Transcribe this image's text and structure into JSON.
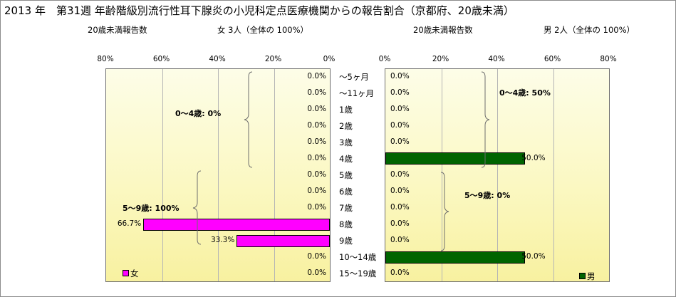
{
  "title": "2013 年　第31週 年齢階級別流行性耳下腺炎の小児科定点医療機関からの報告割合（京都府、20歳未満）",
  "female_panel": {
    "count_label": "20歳未満報告数",
    "summary": "女 3人（全体の 100%）",
    "legend": "女",
    "color": "#ff00ff"
  },
  "male_panel": {
    "count_label": "20歳未満報告数",
    "summary": "男 2人（全体の 100%）",
    "legend": "男",
    "color": "#006400"
  },
  "chart_data": [
    {
      "type": "bar",
      "orientation": "horizontal",
      "direction": "right-to-left",
      "series": [
        {
          "name": "女",
          "values": [
            0,
            0,
            0,
            0,
            0,
            0,
            0,
            0,
            0,
            66.7,
            33.3,
            0,
            0
          ]
        }
      ],
      "categories": [
        "～5ヶ月",
        "～11ヶ月",
        "1歳",
        "2歳",
        "3歳",
        "4歳",
        "5歳",
        "6歳",
        "7歳",
        "8歳",
        "9歳",
        "10～14歳",
        "15～19歳"
      ],
      "value_labels": [
        "0.0%",
        "0.0%",
        "0.0%",
        "0.0%",
        "0.0%",
        "0.0%",
        "0.0%",
        "0.0%",
        "0.0%",
        "66.7%",
        "33.3%",
        "0.0%",
        "0.0%"
      ],
      "xlim": [
        0,
        80
      ],
      "tick_labels": [
        "80%",
        "60%",
        "40%",
        "20%",
        "0%"
      ],
      "annotations": [
        "0～4歳:  0%",
        "5～9歳: 100%"
      ],
      "legend_position": "bottom-left",
      "grid": true
    },
    {
      "type": "bar",
      "orientation": "horizontal",
      "direction": "left-to-right",
      "series": [
        {
          "name": "男",
          "values": [
            0,
            0,
            0,
            0,
            0,
            50,
            0,
            0,
            0,
            0,
            0,
            50,
            0
          ]
        }
      ],
      "categories": [
        "～5ヶ月",
        "～11ヶ月",
        "1歳",
        "2歳",
        "3歳",
        "4歳",
        "5歳",
        "6歳",
        "7歳",
        "8歳",
        "9歳",
        "10～14歳",
        "15～19歳"
      ],
      "value_labels": [
        "0.0%",
        "0.0%",
        "0.0%",
        "0.0%",
        "0.0%",
        "50.0%",
        "0.0%",
        "0.0%",
        "0.0%",
        "0.0%",
        "0.0%",
        "50.0%",
        "0.0%"
      ],
      "xlim": [
        0,
        80
      ],
      "tick_labels": [
        "0%",
        "20%",
        "40%",
        "60%",
        "80%"
      ],
      "annotations": [
        "0～4歳: 50%",
        "5～9歳:  0%"
      ],
      "legend_position": "bottom-right",
      "grid": true
    }
  ]
}
